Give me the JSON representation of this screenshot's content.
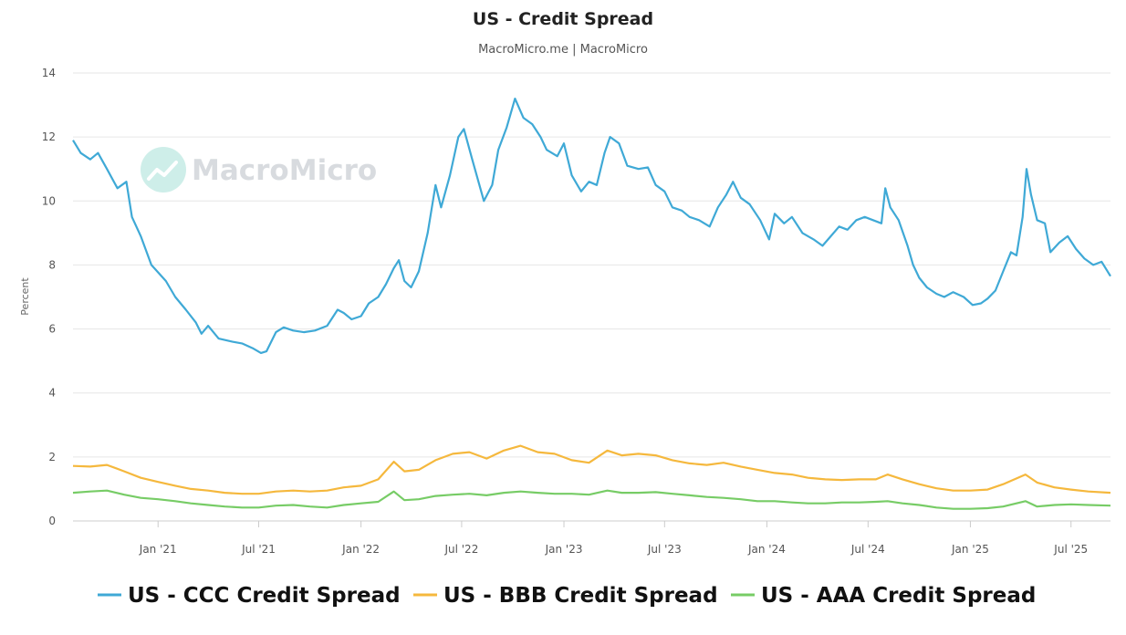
{
  "chart_data": {
    "type": "line",
    "title": "US - Credit Spread",
    "subtitle": "MacroMicro.me | MacroMicro",
    "watermark": "MacroMicro",
    "ylabel": "Percent",
    "xlabel": "",
    "ylim": [
      0,
      14
    ],
    "yticks": [
      "0",
      "2",
      "4",
      "6",
      "8",
      "10",
      "12",
      "14"
    ],
    "xlim": [
      "2020-08-01",
      "2025-09-10"
    ],
    "xticks": [
      {
        "label": "Jan '21",
        "date": "2021-01-01"
      },
      {
        "label": "Jul '21",
        "date": "2021-07-01"
      },
      {
        "label": "Jan '22",
        "date": "2022-01-01"
      },
      {
        "label": "Jul '22",
        "date": "2022-07-01"
      },
      {
        "label": "Jan '23",
        "date": "2023-01-01"
      },
      {
        "label": "Jul '23",
        "date": "2023-07-01"
      },
      {
        "label": "Jan '24",
        "date": "2024-01-01"
      },
      {
        "label": "Jul '24",
        "date": "2024-07-01"
      },
      {
        "label": "Jan '25",
        "date": "2025-01-01"
      },
      {
        "label": "Jul '25",
        "date": "2025-07-01"
      }
    ],
    "grid": true,
    "legend_position": "bottom",
    "series": [
      {
        "name": "US - CCC Credit Spread",
        "color": "#3fa9d6",
        "points": [
          [
            "2020-08-01",
            11.9
          ],
          [
            "2020-08-15",
            11.5
          ],
          [
            "2020-09-01",
            11.3
          ],
          [
            "2020-09-15",
            11.5
          ],
          [
            "2020-10-01",
            11.0
          ],
          [
            "2020-10-20",
            10.4
          ],
          [
            "2020-11-05",
            10.6
          ],
          [
            "2020-11-15",
            9.5
          ],
          [
            "2020-12-01",
            8.9
          ],
          [
            "2020-12-20",
            8.0
          ],
          [
            "2021-01-15",
            7.5
          ],
          [
            "2021-02-01",
            7.0
          ],
          [
            "2021-02-20",
            6.6
          ],
          [
            "2021-03-10",
            6.2
          ],
          [
            "2021-03-20",
            5.85
          ],
          [
            "2021-04-01",
            6.1
          ],
          [
            "2021-04-20",
            5.7
          ],
          [
            "2021-05-15",
            5.6
          ],
          [
            "2021-06-01",
            5.55
          ],
          [
            "2021-06-20",
            5.4
          ],
          [
            "2021-07-05",
            5.25
          ],
          [
            "2021-07-15",
            5.3
          ],
          [
            "2021-08-01",
            5.9
          ],
          [
            "2021-08-15",
            6.05
          ],
          [
            "2021-09-01",
            5.95
          ],
          [
            "2021-09-20",
            5.9
          ],
          [
            "2021-10-10",
            5.95
          ],
          [
            "2021-11-01",
            6.1
          ],
          [
            "2021-11-20",
            6.6
          ],
          [
            "2021-12-01",
            6.5
          ],
          [
            "2021-12-15",
            6.3
          ],
          [
            "2022-01-01",
            6.4
          ],
          [
            "2022-01-15",
            6.8
          ],
          [
            "2022-02-01",
            7.0
          ],
          [
            "2022-02-15",
            7.4
          ],
          [
            "2022-03-01",
            7.9
          ],
          [
            "2022-03-10",
            8.15
          ],
          [
            "2022-03-20",
            7.5
          ],
          [
            "2022-04-01",
            7.3
          ],
          [
            "2022-04-15",
            7.8
          ],
          [
            "2022-05-01",
            9.0
          ],
          [
            "2022-05-15",
            10.5
          ],
          [
            "2022-05-25",
            9.8
          ],
          [
            "2022-06-10",
            10.8
          ],
          [
            "2022-06-25",
            12.0
          ],
          [
            "2022-07-05",
            12.25
          ],
          [
            "2022-07-20",
            11.3
          ],
          [
            "2022-08-10",
            10.0
          ],
          [
            "2022-08-25",
            10.5
          ],
          [
            "2022-09-05",
            11.6
          ],
          [
            "2022-09-20",
            12.3
          ],
          [
            "2022-10-05",
            13.2
          ],
          [
            "2022-10-20",
            12.6
          ],
          [
            "2022-11-05",
            12.4
          ],
          [
            "2022-11-20",
            12.0
          ],
          [
            "2022-12-01",
            11.6
          ],
          [
            "2022-12-20",
            11.4
          ],
          [
            "2023-01-01",
            11.8
          ],
          [
            "2023-01-15",
            10.8
          ],
          [
            "2023-02-01",
            10.3
          ],
          [
            "2023-02-15",
            10.6
          ],
          [
            "2023-03-01",
            10.5
          ],
          [
            "2023-03-15",
            11.5
          ],
          [
            "2023-03-25",
            12.0
          ],
          [
            "2023-04-10",
            11.8
          ],
          [
            "2023-04-25",
            11.1
          ],
          [
            "2023-05-15",
            11.0
          ],
          [
            "2023-06-01",
            11.05
          ],
          [
            "2023-06-15",
            10.5
          ],
          [
            "2023-07-01",
            10.3
          ],
          [
            "2023-07-15",
            9.8
          ],
          [
            "2023-08-01",
            9.7
          ],
          [
            "2023-08-15",
            9.5
          ],
          [
            "2023-09-01",
            9.4
          ],
          [
            "2023-09-20",
            9.2
          ],
          [
            "2023-10-05",
            9.8
          ],
          [
            "2023-10-20",
            10.2
          ],
          [
            "2023-11-01",
            10.6
          ],
          [
            "2023-11-15",
            10.1
          ],
          [
            "2023-12-01",
            9.9
          ],
          [
            "2023-12-20",
            9.4
          ],
          [
            "2024-01-05",
            8.8
          ],
          [
            "2024-01-15",
            9.6
          ],
          [
            "2024-02-01",
            9.3
          ],
          [
            "2024-02-15",
            9.5
          ],
          [
            "2024-03-05",
            9.0
          ],
          [
            "2024-03-25",
            8.8
          ],
          [
            "2024-04-10",
            8.6
          ],
          [
            "2024-04-25",
            8.9
          ],
          [
            "2024-05-10",
            9.2
          ],
          [
            "2024-05-25",
            9.1
          ],
          [
            "2024-06-10",
            9.4
          ],
          [
            "2024-06-25",
            9.5
          ],
          [
            "2024-07-10",
            9.4
          ],
          [
            "2024-07-25",
            9.3
          ],
          [
            "2024-08-01",
            10.4
          ],
          [
            "2024-08-10",
            9.8
          ],
          [
            "2024-08-25",
            9.4
          ],
          [
            "2024-09-10",
            8.6
          ],
          [
            "2024-09-20",
            8.0
          ],
          [
            "2024-10-01",
            7.6
          ],
          [
            "2024-10-15",
            7.3
          ],
          [
            "2024-11-01",
            7.1
          ],
          [
            "2024-11-15",
            7.0
          ],
          [
            "2024-12-01",
            7.15
          ],
          [
            "2024-12-20",
            7.0
          ],
          [
            "2025-01-05",
            6.75
          ],
          [
            "2025-01-20",
            6.8
          ],
          [
            "2025-02-01",
            6.95
          ],
          [
            "2025-02-15",
            7.2
          ],
          [
            "2025-03-01",
            7.8
          ],
          [
            "2025-03-15",
            8.4
          ],
          [
            "2025-03-25",
            8.3
          ],
          [
            "2025-04-05",
            9.5
          ],
          [
            "2025-04-12",
            11.0
          ],
          [
            "2025-04-20",
            10.2
          ],
          [
            "2025-05-01",
            9.4
          ],
          [
            "2025-05-15",
            9.3
          ],
          [
            "2025-05-25",
            8.4
          ],
          [
            "2025-06-10",
            8.7
          ],
          [
            "2025-06-25",
            8.9
          ],
          [
            "2025-07-10",
            8.5
          ],
          [
            "2025-07-25",
            8.2
          ],
          [
            "2025-08-10",
            8.0
          ],
          [
            "2025-08-25",
            8.1
          ],
          [
            "2025-09-10",
            7.65
          ]
        ]
      },
      {
        "name": "US - BBB Credit Spread",
        "color": "#f5b83d",
        "points": [
          [
            "2020-08-01",
            1.72
          ],
          [
            "2020-09-01",
            1.7
          ],
          [
            "2020-10-01",
            1.75
          ],
          [
            "2020-11-01",
            1.55
          ],
          [
            "2020-12-01",
            1.35
          ],
          [
            "2021-01-01",
            1.22
          ],
          [
            "2021-02-01",
            1.1
          ],
          [
            "2021-03-01",
            1.0
          ],
          [
            "2021-04-01",
            0.95
          ],
          [
            "2021-05-01",
            0.88
          ],
          [
            "2021-06-01",
            0.85
          ],
          [
            "2021-07-01",
            0.85
          ],
          [
            "2021-08-01",
            0.92
          ],
          [
            "2021-09-01",
            0.95
          ],
          [
            "2021-10-01",
            0.92
          ],
          [
            "2021-11-01",
            0.95
          ],
          [
            "2021-12-01",
            1.05
          ],
          [
            "2022-01-01",
            1.1
          ],
          [
            "2022-02-01",
            1.3
          ],
          [
            "2022-03-01",
            1.85
          ],
          [
            "2022-03-20",
            1.55
          ],
          [
            "2022-04-15",
            1.6
          ],
          [
            "2022-05-15",
            1.9
          ],
          [
            "2022-06-15",
            2.1
          ],
          [
            "2022-07-15",
            2.15
          ],
          [
            "2022-08-15",
            1.95
          ],
          [
            "2022-09-15",
            2.2
          ],
          [
            "2022-10-15",
            2.35
          ],
          [
            "2022-11-15",
            2.15
          ],
          [
            "2022-12-15",
            2.1
          ],
          [
            "2023-01-15",
            1.9
          ],
          [
            "2023-02-15",
            1.82
          ],
          [
            "2023-03-20",
            2.2
          ],
          [
            "2023-04-15",
            2.05
          ],
          [
            "2023-05-15",
            2.1
          ],
          [
            "2023-06-15",
            2.05
          ],
          [
            "2023-07-15",
            1.9
          ],
          [
            "2023-08-15",
            1.8
          ],
          [
            "2023-09-15",
            1.75
          ],
          [
            "2023-10-15",
            1.82
          ],
          [
            "2023-11-15",
            1.7
          ],
          [
            "2023-12-15",
            1.6
          ],
          [
            "2024-01-15",
            1.5
          ],
          [
            "2024-02-15",
            1.45
          ],
          [
            "2024-03-15",
            1.35
          ],
          [
            "2024-04-15",
            1.3
          ],
          [
            "2024-05-15",
            1.28
          ],
          [
            "2024-06-15",
            1.3
          ],
          [
            "2024-07-15",
            1.3
          ],
          [
            "2024-08-05",
            1.45
          ],
          [
            "2024-09-01",
            1.3
          ],
          [
            "2024-10-01",
            1.15
          ],
          [
            "2024-11-01",
            1.02
          ],
          [
            "2024-12-01",
            0.95
          ],
          [
            "2025-01-01",
            0.95
          ],
          [
            "2025-02-01",
            0.98
          ],
          [
            "2025-03-01",
            1.15
          ],
          [
            "2025-04-10",
            1.45
          ],
          [
            "2025-05-01",
            1.2
          ],
          [
            "2025-06-01",
            1.05
          ],
          [
            "2025-07-01",
            0.98
          ],
          [
            "2025-08-01",
            0.92
          ],
          [
            "2025-09-10",
            0.88
          ]
        ]
      },
      {
        "name": "US - AAA Credit Spread",
        "color": "#77cc66",
        "points": [
          [
            "2020-08-01",
            0.88
          ],
          [
            "2020-09-01",
            0.92
          ],
          [
            "2020-10-01",
            0.95
          ],
          [
            "2020-11-01",
            0.82
          ],
          [
            "2020-12-01",
            0.72
          ],
          [
            "2021-01-01",
            0.68
          ],
          [
            "2021-02-01",
            0.62
          ],
          [
            "2021-03-01",
            0.55
          ],
          [
            "2021-04-01",
            0.5
          ],
          [
            "2021-05-01",
            0.45
          ],
          [
            "2021-06-01",
            0.42
          ],
          [
            "2021-07-01",
            0.42
          ],
          [
            "2021-08-01",
            0.48
          ],
          [
            "2021-09-01",
            0.5
          ],
          [
            "2021-10-01",
            0.45
          ],
          [
            "2021-11-01",
            0.42
          ],
          [
            "2021-12-01",
            0.5
          ],
          [
            "2022-01-01",
            0.55
          ],
          [
            "2022-02-01",
            0.6
          ],
          [
            "2022-03-01",
            0.92
          ],
          [
            "2022-03-20",
            0.65
          ],
          [
            "2022-04-15",
            0.68
          ],
          [
            "2022-05-15",
            0.78
          ],
          [
            "2022-06-15",
            0.82
          ],
          [
            "2022-07-15",
            0.85
          ],
          [
            "2022-08-15",
            0.8
          ],
          [
            "2022-09-15",
            0.88
          ],
          [
            "2022-10-15",
            0.92
          ],
          [
            "2022-11-15",
            0.88
          ],
          [
            "2022-12-15",
            0.85
          ],
          [
            "2023-01-15",
            0.85
          ],
          [
            "2023-02-15",
            0.82
          ],
          [
            "2023-03-20",
            0.95
          ],
          [
            "2023-04-15",
            0.88
          ],
          [
            "2023-05-15",
            0.88
          ],
          [
            "2023-06-15",
            0.9
          ],
          [
            "2023-07-15",
            0.85
          ],
          [
            "2023-08-15",
            0.8
          ],
          [
            "2023-09-15",
            0.75
          ],
          [
            "2023-10-15",
            0.72
          ],
          [
            "2023-11-15",
            0.68
          ],
          [
            "2023-12-15",
            0.62
          ],
          [
            "2024-01-15",
            0.62
          ],
          [
            "2024-02-15",
            0.58
          ],
          [
            "2024-03-15",
            0.55
          ],
          [
            "2024-04-15",
            0.55
          ],
          [
            "2024-05-15",
            0.58
          ],
          [
            "2024-06-15",
            0.58
          ],
          [
            "2024-07-15",
            0.6
          ],
          [
            "2024-08-05",
            0.62
          ],
          [
            "2024-09-01",
            0.55
          ],
          [
            "2024-10-01",
            0.5
          ],
          [
            "2024-11-01",
            0.42
          ],
          [
            "2024-12-01",
            0.38
          ],
          [
            "2025-01-01",
            0.38
          ],
          [
            "2025-02-01",
            0.4
          ],
          [
            "2025-03-01",
            0.45
          ],
          [
            "2025-04-10",
            0.62
          ],
          [
            "2025-05-01",
            0.45
          ],
          [
            "2025-06-01",
            0.5
          ],
          [
            "2025-07-01",
            0.52
          ],
          [
            "2025-08-01",
            0.5
          ],
          [
            "2025-09-10",
            0.48
          ]
        ]
      }
    ]
  }
}
